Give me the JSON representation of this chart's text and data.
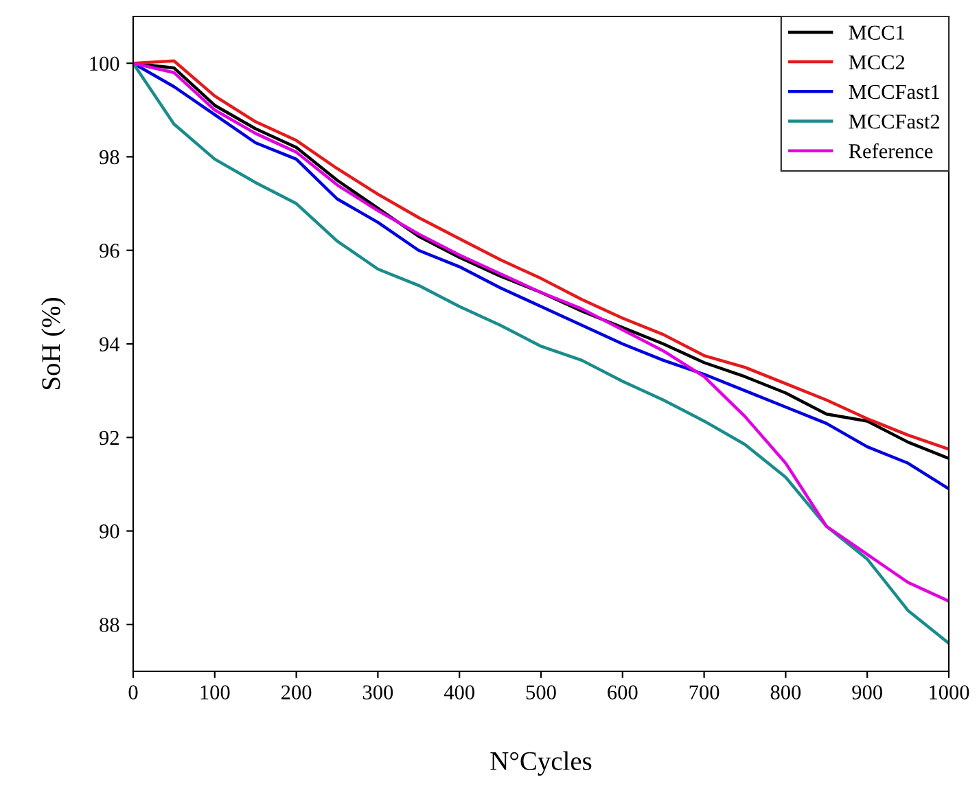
{
  "chart_data": {
    "type": "line",
    "xlabel": "N°Cycles",
    "ylabel": "SoH (%)",
    "x": [
      0,
      50,
      100,
      150,
      200,
      250,
      300,
      350,
      400,
      450,
      500,
      550,
      600,
      650,
      700,
      750,
      800,
      850,
      900,
      950,
      1000
    ],
    "series": [
      {
        "name": "MCC1",
        "color": "#000000",
        "values": [
          100,
          99.9,
          99.1,
          98.6,
          98.2,
          97.5,
          96.9,
          96.3,
          95.85,
          95.45,
          95.1,
          94.7,
          94.35,
          94.0,
          93.6,
          93.3,
          92.95,
          92.5,
          92.35,
          91.9,
          91.55
        ]
      },
      {
        "name": "MCC2",
        "color": "#e41a1c",
        "values": [
          100,
          100.05,
          99.3,
          98.75,
          98.35,
          97.75,
          97.2,
          96.7,
          96.25,
          95.8,
          95.4,
          94.95,
          94.55,
          94.2,
          93.75,
          93.5,
          93.15,
          92.8,
          92.4,
          92.05,
          91.75
        ]
      },
      {
        "name": "MCCFast1",
        "color": "#0000e0",
        "values": [
          100,
          99.5,
          98.9,
          98.3,
          97.95,
          97.1,
          96.6,
          96.0,
          95.65,
          95.2,
          94.8,
          94.4,
          94.0,
          93.65,
          93.35,
          93.0,
          92.65,
          92.3,
          91.8,
          91.45,
          90.9
        ]
      },
      {
        "name": "MCCFast2",
        "color": "#1a8c8c",
        "values": [
          100,
          98.7,
          97.95,
          97.45,
          97.0,
          96.2,
          95.6,
          95.25,
          94.8,
          94.4,
          93.95,
          93.65,
          93.2,
          92.8,
          92.35,
          91.85,
          91.15,
          90.1,
          89.4,
          88.3,
          87.6
        ]
      },
      {
        "name": "Reference",
        "color": "#e000e0",
        "values": [
          100,
          99.8,
          99.0,
          98.5,
          98.1,
          97.4,
          96.85,
          96.35,
          95.9,
          95.5,
          95.1,
          94.75,
          94.3,
          93.85,
          93.3,
          92.45,
          91.45,
          90.1,
          89.5,
          88.9,
          88.5
        ]
      }
    ],
    "xlim": [
      0,
      1000
    ],
    "ylim": [
      87,
      101
    ],
    "xticks": [
      0,
      100,
      200,
      300,
      400,
      500,
      600,
      700,
      800,
      900,
      1000
    ],
    "yticks": [
      88,
      90,
      92,
      94,
      96,
      98,
      100
    ],
    "legend": "top right",
    "grid": false,
    "marker": "none",
    "line_style": "solid"
  }
}
